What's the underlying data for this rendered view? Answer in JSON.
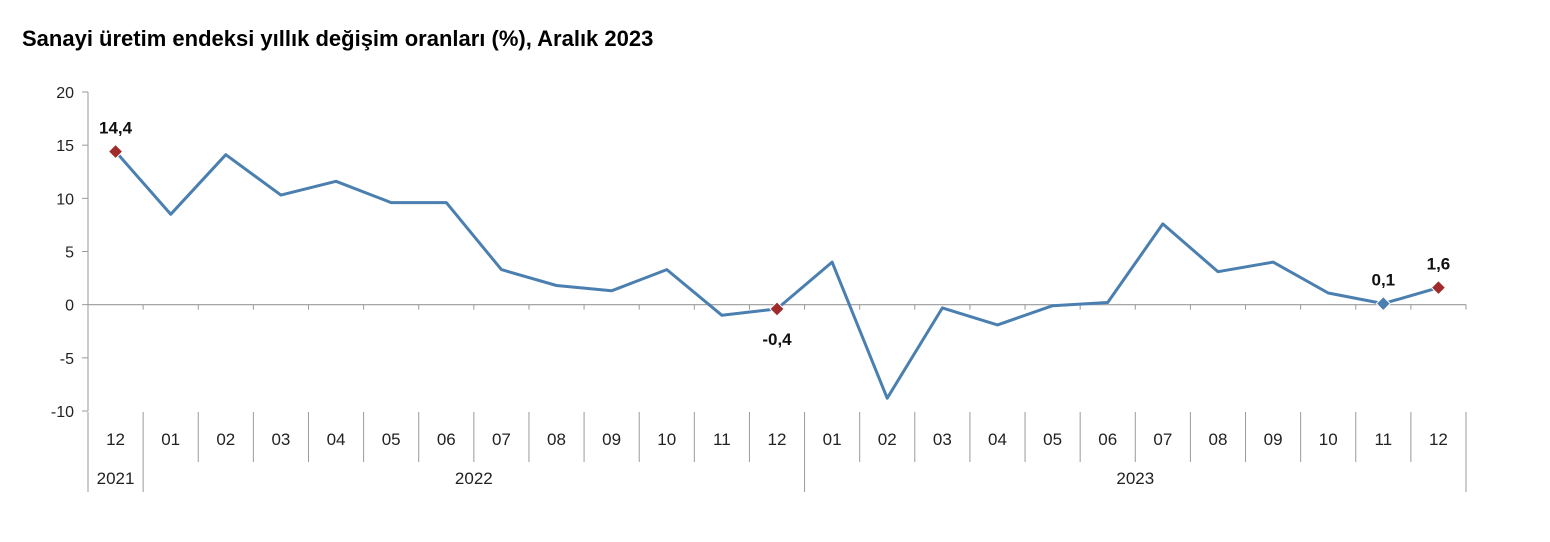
{
  "chart_data": {
    "type": "line",
    "title": "Sanayi üretim endeksi yıllık değişim oranları (%), Aralık 2023",
    "ylim": [
      -10,
      20
    ],
    "yticks": [
      20,
      15,
      10,
      5,
      0,
      -5,
      -10
    ],
    "categories": [
      "12",
      "01",
      "02",
      "03",
      "04",
      "05",
      "06",
      "07",
      "08",
      "09",
      "10",
      "11",
      "12",
      "01",
      "02",
      "03",
      "04",
      "05",
      "06",
      "07",
      "08",
      "09",
      "10",
      "11",
      "12"
    ],
    "year_groups": [
      {
        "label": "2021",
        "start": 0,
        "end": 0
      },
      {
        "label": "2022",
        "start": 1,
        "end": 12
      },
      {
        "label": "2023",
        "start": 13,
        "end": 24
      }
    ],
    "series": [
      {
        "values": [
          14.4,
          8.5,
          14.1,
          10.3,
          11.6,
          9.6,
          9.6,
          3.3,
          1.8,
          1.3,
          3.3,
          -1.0,
          -0.4,
          4.0,
          -8.8,
          -0.3,
          -1.9,
          -0.1,
          0.2,
          7.6,
          3.1,
          4.0,
          1.1,
          0.1,
          1.6
        ],
        "color": "#4a7fb0"
      }
    ],
    "highlighted_points": [
      {
        "index": 0,
        "label": "14,4",
        "color": "#a12a2a"
      },
      {
        "index": 12,
        "label": "-0,4",
        "color": "#a12a2a"
      },
      {
        "index": 23,
        "label": "0,1",
        "color": "#4a7fb0"
      },
      {
        "index": 24,
        "label": "1,6",
        "color": "#a12a2a"
      }
    ]
  }
}
